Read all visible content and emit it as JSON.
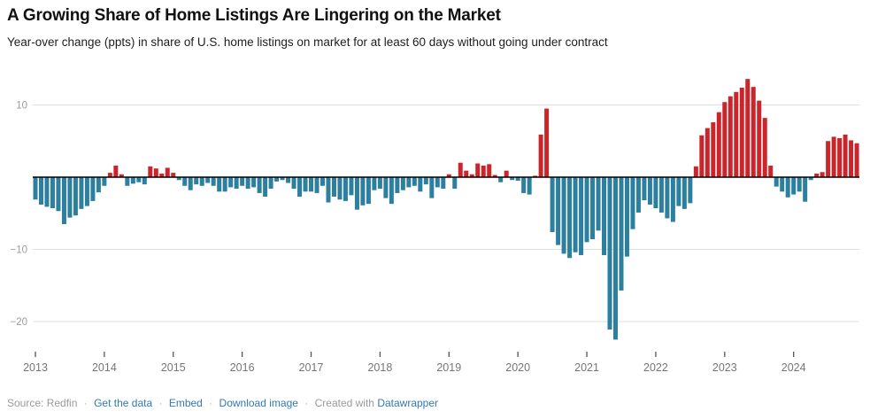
{
  "header": {
    "title": "A Growing Share of Home Listings Are Lingering on the Market",
    "subtitle": "Year-over change (ppts) in share of U.S. home listings on market for at least 60 days without going under contract"
  },
  "footer": {
    "source_text": "Source: Redfin",
    "links": [
      "Get the data",
      "Embed",
      "Download image"
    ],
    "created_with": "Created with",
    "creator_link": "Datawrapper",
    "separator": "·"
  },
  "colors": {
    "positive_bar": "#c9252b",
    "negative_bar": "#2d7f9f",
    "zero_axis": "#000000",
    "gridline": "#e0e0e0",
    "y_tick_label": "#9b9b9b",
    "year_tick": "#555555",
    "year_label": "#767676",
    "link": "#2f79b5",
    "footer_text": "#9a9a9a"
  },
  "chart_data": {
    "type": "bar",
    "title": "A Growing Share of Home Listings Are Lingering on the Market",
    "subtitle": "Year-over change (ppts) in share of U.S. home listings on market for at least 60 days without going under contract",
    "unit": "ppts",
    "frequency": "monthly",
    "xlabel": "",
    "ylabel": "Year-over change (ppts)",
    "ylim": [
      -23.5,
      14.5
    ],
    "yticks": [
      10,
      -10,
      -20
    ],
    "grid": "horizontal",
    "legend": "none",
    "years": [
      {
        "year": 2013,
        "values": [
          -3.1,
          -3.8,
          -4.1,
          -4.3,
          -4.7,
          -6.5,
          -5.6,
          -5.3,
          -4.4,
          -4.0,
          -3.3,
          -2.1
        ]
      },
      {
        "year": 2014,
        "values": [
          -1.2,
          0.6,
          1.6,
          0.4,
          -1.2,
          -0.9,
          -0.7,
          -1.0,
          1.5,
          1.2,
          0.5,
          1.3
        ]
      },
      {
        "year": 2015,
        "values": [
          0.6,
          -0.4,
          -1.2,
          -1.8,
          -1.0,
          -1.2,
          -0.8,
          -1.2,
          -2.0,
          -2.0,
          -1.4,
          -1.6
        ]
      },
      {
        "year": 2016,
        "values": [
          -1.2,
          -1.6,
          -1.4,
          -2.2,
          -2.7,
          -1.6,
          -0.6,
          -0.4,
          -0.8,
          -1.6,
          -2.7,
          -2.0
        ]
      },
      {
        "year": 2017,
        "values": [
          -2.0,
          -2.2,
          -1.2,
          -3.5,
          -2.7,
          -3.1,
          -3.3,
          -2.5,
          -4.5,
          -3.9,
          -3.7,
          -1.8
        ]
      },
      {
        "year": 2018,
        "values": [
          -1.6,
          -2.9,
          -3.7,
          -2.2,
          -1.8,
          -1.4,
          -1.2,
          -2.0,
          -1.0,
          -2.9,
          -1.4,
          -1.6
        ]
      },
      {
        "year": 2019,
        "values": [
          0.4,
          -1.6,
          2.0,
          0.9,
          0.4,
          1.9,
          1.6,
          1.8,
          0.3,
          -0.7,
          0.9,
          -0.4
        ]
      },
      {
        "year": 2020,
        "values": [
          -0.5,
          -2.2,
          -2.4,
          0.2,
          5.9,
          9.5,
          -7.6,
          -9.4,
          -10.6,
          -11.2,
          -10.4,
          -10.8
        ]
      },
      {
        "year": 2021,
        "values": [
          -9.0,
          -8.6,
          -7.4,
          -10.8,
          -21.1,
          -22.5,
          -15.7,
          -11.0,
          -7.2,
          -4.9,
          -3.2,
          -3.8
        ]
      },
      {
        "year": 2022,
        "values": [
          -4.3,
          -4.9,
          -5.7,
          -6.2,
          -4.0,
          -4.4,
          -3.6,
          1.5,
          5.8,
          6.8,
          7.6,
          9.0
        ]
      },
      {
        "year": 2023,
        "values": [
          10.4,
          11.2,
          11.8,
          12.4,
          13.6,
          12.5,
          10.6,
          8.2,
          1.6,
          -1.3,
          -2.0,
          -2.8
        ]
      },
      {
        "year": 2024,
        "values": [
          -2.4,
          -2.0,
          -3.4,
          -0.4,
          0.5,
          0.7,
          5.0,
          5.6,
          5.4,
          5.9,
          5.1,
          4.7
        ]
      }
    ]
  }
}
